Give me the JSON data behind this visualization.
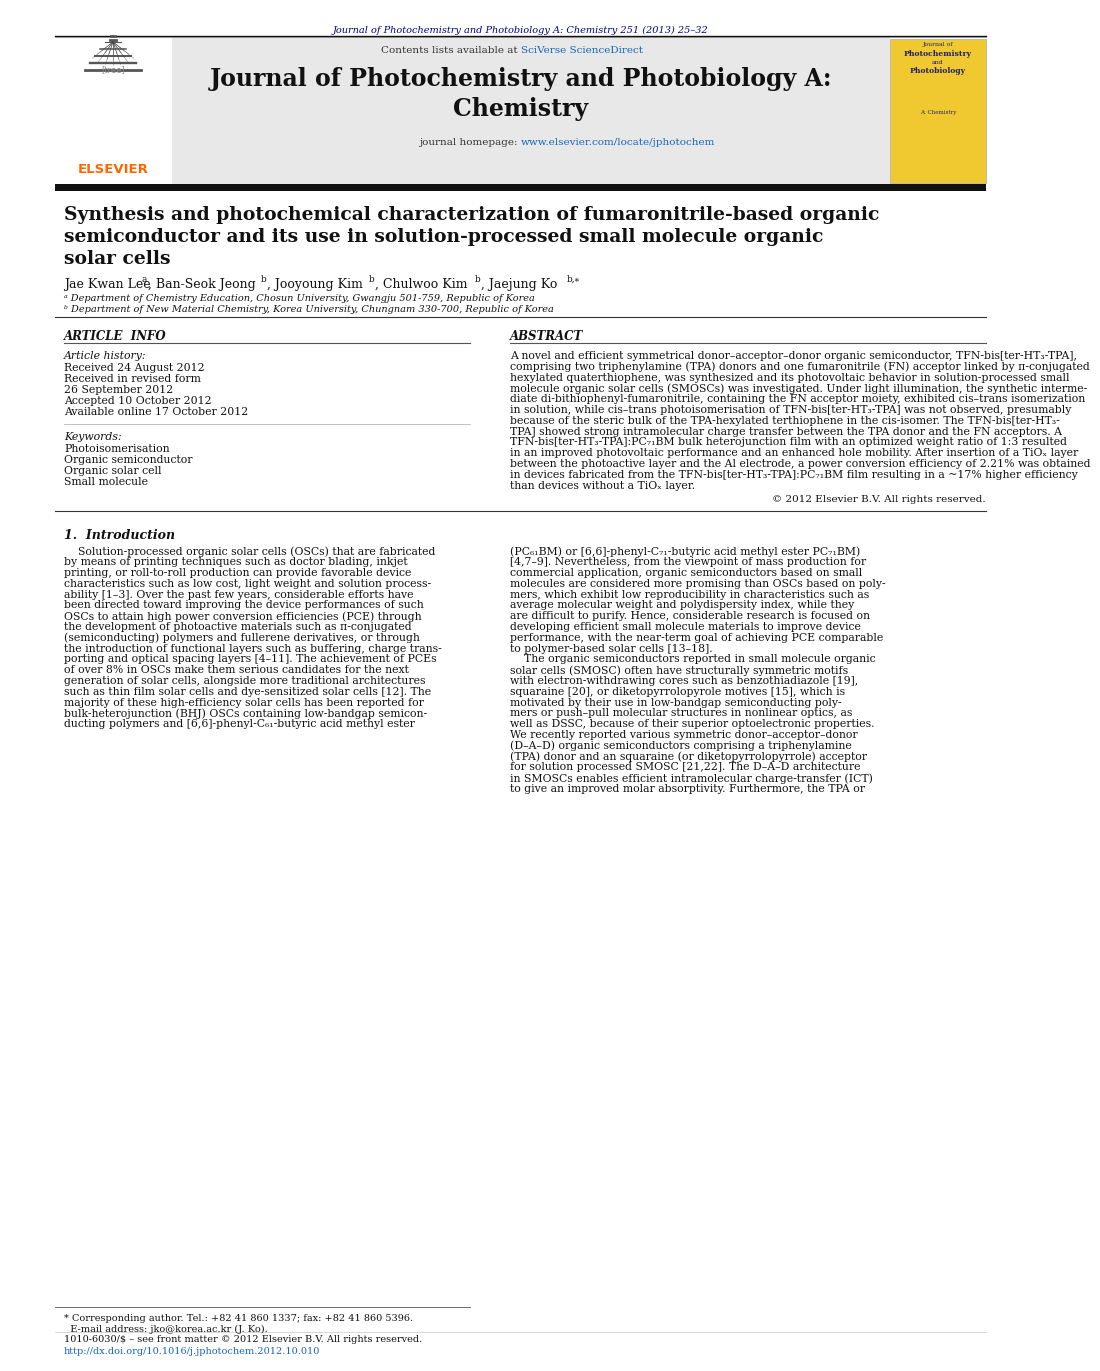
{
  "page_bg": "#ffffff",
  "top_journal_ref": "Journal of Photochemistry and Photobiology A: Chemistry 251 (2013) 25–32",
  "top_journal_ref_color": "#00008B",
  "header_bg": "#e8e8e8",
  "header_journal_title_line1": "Journal of Photochemistry and Photobiology A:",
  "header_journal_title_line2": "Chemistry",
  "header_contents": "Contents lists available at ",
  "header_sciverse": "SciVerse ScienceDirect",
  "header_homepage_label": "journal homepage: ",
  "header_homepage_url": "www.elsevier.com/locate/jphotochem",
  "elsevier_color": "#FF6600",
  "paper_title_line1": "Synthesis and photochemical characterization of fumaronitrile-based organic",
  "paper_title_line2": "semiconductor and its use in solution-processed small molecule organic",
  "paper_title_line3": "solar cells",
  "section_article_info": "ARTICLE  INFO",
  "article_history_label": "Article history:",
  "article_dates": [
    "Received 24 August 2012",
    "Received in revised form",
    "26 September 2012",
    "Accepted 10 October 2012",
    "Available online 17 October 2012"
  ],
  "keywords_label": "Keywords:",
  "keywords": [
    "Photoisomerisation",
    "Organic semiconductor",
    "Organic solar cell",
    "Small molecule"
  ],
  "section_abstract": "ABSTRACT",
  "abstract_lines": [
    "A novel and efficient symmetrical donor–acceptor–donor organic semiconductor, TFN-bis[ter-HT₃-TPA],",
    "comprising two triphenylamine (TPA) donors and one fumaronitrile (FN) acceptor linked by π-conjugated",
    "hexylated quaterthiophene, was synthesized and its photovoltaic behavior in solution-processed small",
    "molecule organic solar cells (SMOSCs) was investigated. Under light illumination, the synthetic interme-",
    "diate di-bithiophenyl-fumaronitrile, containing the FN acceptor moiety, exhibited cis–trans isomerization",
    "in solution, while cis–trans photoisomerisation of TFN-bis[ter-HT₃-TPA] was not observed, presumably",
    "because of the steric bulk of the TPA-hexylated terthiophene in the cis-isomer. The TFN-bis[ter-HT₃-",
    "TPA] showed strong intramolecular charge transfer between the TPA donor and the FN acceptors. A",
    "TFN-bis[ter-HT₃-TPA]:PC₇₁BM bulk heterojunction film with an optimized weight ratio of 1:3 resulted",
    "in an improved photovoltaic performance and an enhanced hole mobility. After insertion of a TiOₓ layer",
    "between the photoactive layer and the Al electrode, a power conversion efficiency of 2.21% was obtained",
    "in devices fabricated from the TFN-bis[ter-HT₃-TPA]:PC₇₁BM film resulting in a ~17% higher efficiency",
    "than devices without a TiOₓ layer."
  ],
  "copyright_text": "© 2012 Elsevier B.V. All rights reserved.",
  "intro_title": "1.  Introduction",
  "intro_col1_lines": [
    "    Solution-processed organic solar cells (OSCs) that are fabricated",
    "by means of printing techniques such as doctor blading, inkjet",
    "printing, or roll-to-roll production can provide favorable device",
    "characteristics such as low cost, light weight and solution process-",
    "ability [1–3]. Over the past few years, considerable efforts have",
    "been directed toward improving the device performances of such",
    "OSCs to attain high power conversion efficiencies (PCE) through",
    "the development of photoactive materials such as π-conjugated",
    "(semiconducting) polymers and fullerene derivatives, or through",
    "the introduction of functional layers such as buffering, charge trans-",
    "porting and optical spacing layers [4–11]. The achievement of PCEs",
    "of over 8% in OSCs make them serious candidates for the next",
    "generation of solar cells, alongside more traditional architectures",
    "such as thin film solar cells and dye-sensitized solar cells [12]. The",
    "majority of these high-efficiency solar cells has been reported for",
    "bulk-heterojunction (BHJ) OSCs containing low-bandgap semicon-",
    "ducting polymers and [6,6]-phenyl-C₆₁-butyric acid methyl ester"
  ],
  "intro_col2_lines": [
    "(PC₆₁BM) or [6,6]-phenyl-C₇₁-butyric acid methyl ester PC₇₁BM)",
    "[4,7–9]. Nevertheless, from the viewpoint of mass production for",
    "commercial application, organic semiconductors based on small",
    "molecules are considered more promising than OSCs based on poly-",
    "mers, which exhibit low reproducibility in characteristics such as",
    "average molecular weight and polydispersity index, while they",
    "are difficult to purify. Hence, considerable research is focused on",
    "developing efficient small molecule materials to improve device",
    "performance, with the near-term goal of achieving PCE comparable",
    "to polymer-based solar cells [13–18].",
    "    The organic semiconductors reported in small molecule organic",
    "solar cells (SMOSC) often have structurally symmetric motifs",
    "with electron-withdrawing cores such as benzothiadiazole [19],",
    "squaraine [20], or diketopyrrolopyrole motives [15], which is",
    "motivated by their use in low-bandgap semiconducting poly-",
    "mers or push–pull molecular structures in nonlinear optics, as",
    "well as DSSC, because of their superior optoelectronic properties.",
    "We recently reported various symmetric donor–acceptor–donor",
    "(D–A–D) organic semiconductors comprising a triphenylamine",
    "(TPA) donor and an squaraine (or diketopyrrolopyrrole) acceptor",
    "for solution processed SMOSC [21,22]. The D–A–D architecture",
    "in SMOSCs enables efficient intramolecular charge-transfer (ICT)",
    "to give an improved molar absorptivity. Furthermore, the TPA or"
  ],
  "footnote_star": "* Corresponding author. Tel.: +82 41 860 1337; fax: +82 41 860 5396.",
  "footnote_email": "  E-mail address: jko@korea.ac.kr (J. Ko).",
  "footer_issn": "1010-6030/$ – see front matter © 2012 Elsevier B.V. All rights reserved.",
  "footer_doi": "http://dx.doi.org/10.1016/j.jphotochem.2012.10.010",
  "affil_a": "ᵃ Department of Chemistry Education, Chosun University, Gwangju 501-759, Republic of Korea",
  "affil_b": "ᵇ Department of New Material Chemistry, Korea University, Chungnam 330-700, Republic of Korea"
}
